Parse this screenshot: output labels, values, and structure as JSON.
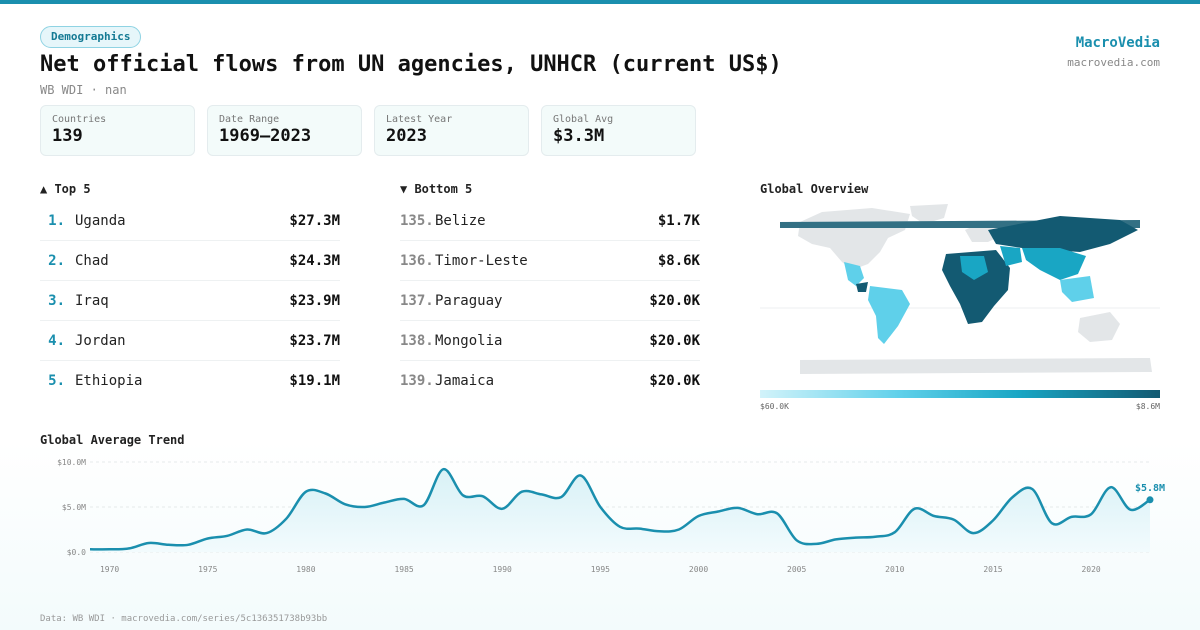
{
  "header": {
    "badge": "Demographics",
    "title": "Net official flows from UN agencies, UNHCR (current US$)",
    "subtitle": "WB WDI · nan",
    "brand_name": "MacroVedia",
    "brand_url": "macrovedia.com"
  },
  "stats": [
    {
      "label": "Countries",
      "value": "139"
    },
    {
      "label": "Date Range",
      "value": "1969–2023"
    },
    {
      "label": "Latest Year",
      "value": "2023"
    },
    {
      "label": "Global Avg",
      "value": "$3.3M"
    }
  ],
  "top5": {
    "title": "▲ Top 5",
    "items": [
      {
        "rank": "1.",
        "name": "Uganda",
        "value": "$27.3M"
      },
      {
        "rank": "2.",
        "name": "Chad",
        "value": "$24.3M"
      },
      {
        "rank": "3.",
        "name": "Iraq",
        "value": "$23.9M"
      },
      {
        "rank": "4.",
        "name": "Jordan",
        "value": "$23.7M"
      },
      {
        "rank": "5.",
        "name": "Ethiopia",
        "value": "$19.1M"
      }
    ]
  },
  "bottom5": {
    "title": "▼ Bottom 5",
    "items": [
      {
        "rank": "135.",
        "name": "Belize",
        "value": "$1.7K"
      },
      {
        "rank": "136.",
        "name": "Timor-Leste",
        "value": "$8.6K"
      },
      {
        "rank": "137.",
        "name": "Paraguay",
        "value": "$20.0K"
      },
      {
        "rank": "138.",
        "name": "Mongolia",
        "value": "$20.0K"
      },
      {
        "rank": "139.",
        "name": "Jamaica",
        "value": "$20.0K"
      }
    ]
  },
  "overview": {
    "title": "Global Overview",
    "scale_min": "$60.0K",
    "scale_max": "$8.6M"
  },
  "trend": {
    "title": "Global Average Trend"
  },
  "footer": "Data: WB WDI · macrovedia.com/series/5c136351738b93bb",
  "colors": {
    "accent": "#1a8fae",
    "line": "#1a8fae",
    "area": "#d8f1f6",
    "map_gray": "#e3e6e8",
    "map_light": "#5fd0ea",
    "map_dark": "#135a72"
  },
  "chart_data": {
    "type": "area",
    "title": "Global Average Trend",
    "xlabel": "",
    "ylabel": "",
    "x": [
      1969,
      1970,
      1971,
      1972,
      1973,
      1974,
      1975,
      1976,
      1977,
      1978,
      1979,
      1980,
      1981,
      1982,
      1983,
      1984,
      1985,
      1986,
      1987,
      1988,
      1989,
      1990,
      1991,
      1992,
      1993,
      1994,
      1995,
      1996,
      1997,
      1998,
      1999,
      2000,
      2001,
      2002,
      2003,
      2004,
      2005,
      2006,
      2007,
      2008,
      2009,
      2010,
      2011,
      2012,
      2013,
      2014,
      2015,
      2016,
      2017,
      2018,
      2019,
      2020,
      2021,
      2022,
      2023
    ],
    "values": [
      0.3,
      0.3,
      0.4,
      1.0,
      0.8,
      0.8,
      1.5,
      1.8,
      2.5,
      2.1,
      3.7,
      6.7,
      6.5,
      5.3,
      5.0,
      5.5,
      5.9,
      5.2,
      9.2,
      6.3,
      6.2,
      4.8,
      6.7,
      6.4,
      6.1,
      8.5,
      5.0,
      2.8,
      2.6,
      2.3,
      2.5,
      4.0,
      4.5,
      4.9,
      4.2,
      4.3,
      1.3,
      0.9,
      1.4,
      1.6,
      1.7,
      2.2,
      4.8,
      4.0,
      3.6,
      2.1,
      3.5,
      6.1,
      7.0,
      3.2,
      3.9,
      4.2,
      7.2,
      4.7,
      5.8
    ],
    "ylim": [
      0,
      10
    ],
    "y_ticks": [
      {
        "v": 0,
        "label": "$0.0"
      },
      {
        "v": 5,
        "label": "$5.0M"
      },
      {
        "v": 10,
        "label": "$10.0M"
      }
    ],
    "x_ticks": [
      1970,
      1975,
      1980,
      1985,
      1990,
      1995,
      2000,
      2005,
      2010,
      2015,
      2020
    ],
    "end_label": "$5.8M",
    "grid": true
  }
}
